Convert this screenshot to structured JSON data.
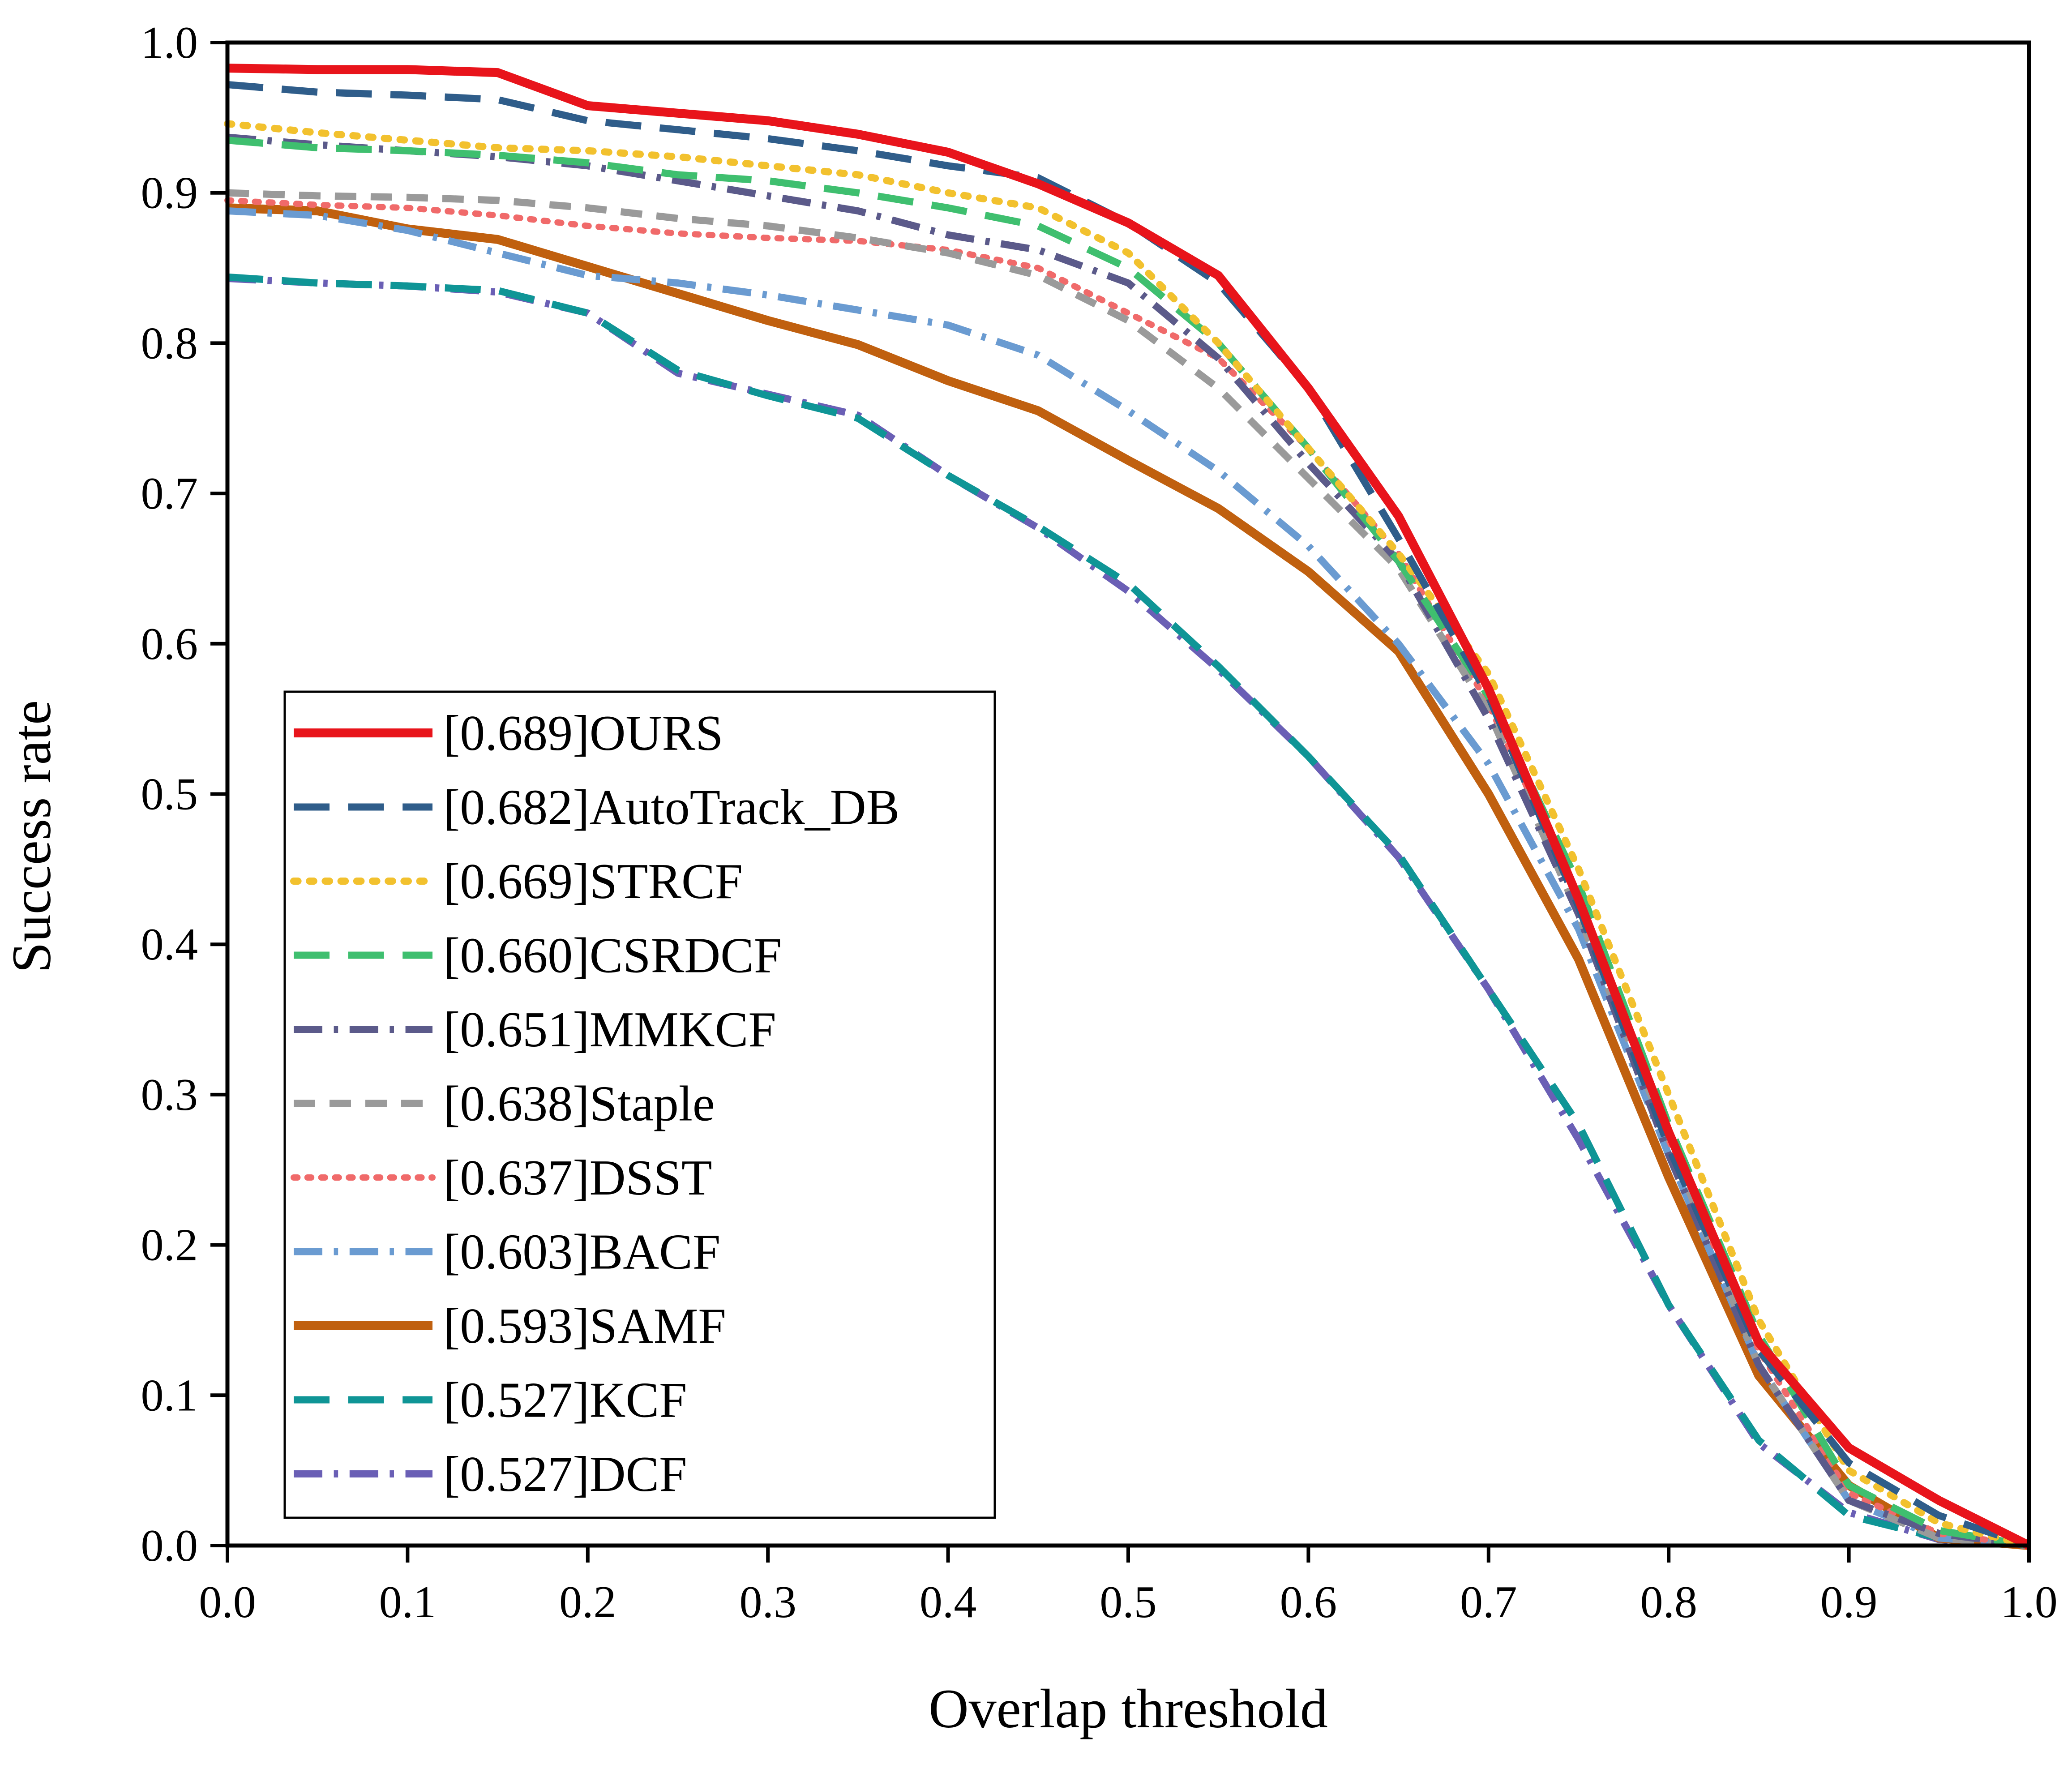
{
  "chart_data": {
    "type": "line",
    "xlabel": "Overlap threshold",
    "ylabel": "Success rate",
    "xlim": [
      0,
      1
    ],
    "ylim": [
      0,
      1
    ],
    "xticks": [
      "0.0",
      "0.1",
      "0.2",
      "0.3",
      "0.4",
      "0.5",
      "0.6",
      "0.7",
      "0.8",
      "0.9",
      "1.0"
    ],
    "yticks": [
      "0.0",
      "0.1",
      "0.2",
      "0.3",
      "0.4",
      "0.5",
      "0.6",
      "0.7",
      "0.8",
      "0.9",
      "1.0"
    ],
    "grid": false,
    "legend_position": "lower-left",
    "x": [
      0.0,
      0.05,
      0.1,
      0.15,
      0.2,
      0.25,
      0.3,
      0.35,
      0.4,
      0.45,
      0.5,
      0.55,
      0.6,
      0.65,
      0.7,
      0.75,
      0.8,
      0.85,
      0.9,
      0.95,
      1.0
    ],
    "series": [
      {
        "name": "[0.689]OURS",
        "color": "#e8141b",
        "dash": "solid",
        "width": 20,
        "values": [
          0.983,
          0.982,
          0.982,
          0.98,
          0.958,
          0.953,
          0.948,
          0.939,
          0.927,
          0.906,
          0.88,
          0.845,
          0.77,
          0.685,
          0.57,
          0.43,
          0.275,
          0.135,
          0.065,
          0.03,
          0.0
        ]
      },
      {
        "name": "[0.682]AutoTrack_DB",
        "color": "#2f5d8a",
        "dash": "long-dash",
        "width": 16,
        "values": [
          0.972,
          0.967,
          0.965,
          0.962,
          0.948,
          0.942,
          0.936,
          0.928,
          0.918,
          0.91,
          0.88,
          0.84,
          0.77,
          0.67,
          0.565,
          0.425,
          0.265,
          0.13,
          0.055,
          0.02,
          0.0
        ]
      },
      {
        "name": "[0.669]STRCF",
        "color": "#f2c12e",
        "dash": "dot",
        "width": 16,
        "values": [
          0.946,
          0.94,
          0.935,
          0.93,
          0.928,
          0.924,
          0.918,
          0.912,
          0.9,
          0.89,
          0.86,
          0.8,
          0.73,
          0.66,
          0.58,
          0.45,
          0.3,
          0.15,
          0.05,
          0.015,
          0.0
        ]
      },
      {
        "name": "[0.660]CSRDCF",
        "color": "#3fbf6f",
        "dash": "long-dash",
        "width": 16,
        "values": [
          0.935,
          0.93,
          0.928,
          0.925,
          0.92,
          0.912,
          0.908,
          0.9,
          0.89,
          0.878,
          0.85,
          0.8,
          0.73,
          0.655,
          0.565,
          0.44,
          0.28,
          0.14,
          0.04,
          0.01,
          0.0
        ]
      },
      {
        "name": "[0.651]MMKCF",
        "color": "#5b5a8a",
        "dash": "dash-dot",
        "width": 16,
        "values": [
          0.937,
          0.932,
          0.928,
          0.924,
          0.918,
          0.908,
          0.898,
          0.888,
          0.872,
          0.862,
          0.84,
          0.79,
          0.72,
          0.655,
          0.55,
          0.42,
          0.26,
          0.12,
          0.03,
          0.008,
          0.0
        ]
      },
      {
        "name": "[0.638]Staple",
        "color": "#9a9a9a",
        "dash": "dash",
        "width": 16,
        "values": [
          0.9,
          0.898,
          0.897,
          0.895,
          0.89,
          0.883,
          0.878,
          0.87,
          0.86,
          0.845,
          0.815,
          0.77,
          0.71,
          0.65,
          0.555,
          0.42,
          0.27,
          0.12,
          0.03,
          0.005,
          0.0
        ]
      },
      {
        "name": "[0.637]DSST",
        "color": "#f06a6a",
        "dash": "dot",
        "width": 14,
        "values": [
          0.895,
          0.892,
          0.89,
          0.885,
          0.878,
          0.873,
          0.87,
          0.868,
          0.862,
          0.85,
          0.82,
          0.79,
          0.73,
          0.66,
          0.56,
          0.43,
          0.27,
          0.13,
          0.035,
          0.008,
          0.0
        ]
      },
      {
        "name": "[0.603]BACF",
        "color": "#6a9bd1",
        "dash": "dash-dot",
        "width": 16,
        "values": [
          0.888,
          0.885,
          0.875,
          0.86,
          0.845,
          0.84,
          0.832,
          0.822,
          0.812,
          0.792,
          0.755,
          0.715,
          0.665,
          0.6,
          0.52,
          0.41,
          0.26,
          0.12,
          0.03,
          0.005,
          0.0
        ]
      },
      {
        "name": "[0.593]SAMF",
        "color": "#c0600f",
        "dash": "solid",
        "width": 20,
        "values": [
          0.89,
          0.888,
          0.876,
          0.869,
          0.851,
          0.833,
          0.815,
          0.799,
          0.775,
          0.755,
          0.722,
          0.69,
          0.648,
          0.595,
          0.5,
          0.39,
          0.245,
          0.113,
          0.04,
          0.005,
          0.0
        ]
      },
      {
        "name": "[0.527]KCF",
        "color": "#0f9596",
        "dash": "long-dash",
        "width": 16,
        "values": [
          0.844,
          0.84,
          0.838,
          0.835,
          0.82,
          0.782,
          0.765,
          0.75,
          0.712,
          0.678,
          0.64,
          0.585,
          0.525,
          0.46,
          0.37,
          0.28,
          0.16,
          0.07,
          0.02,
          0.005,
          0.0
        ]
      },
      {
        "name": "[0.527]DCF",
        "color": "#6a5fb5",
        "dash": "dash-dot",
        "width": 16,
        "values": [
          0.843,
          0.84,
          0.838,
          0.834,
          0.82,
          0.78,
          0.766,
          0.752,
          0.712,
          0.677,
          0.635,
          0.583,
          0.525,
          0.458,
          0.37,
          0.27,
          0.16,
          0.068,
          0.022,
          0.004,
          0.0
        ]
      }
    ]
  }
}
